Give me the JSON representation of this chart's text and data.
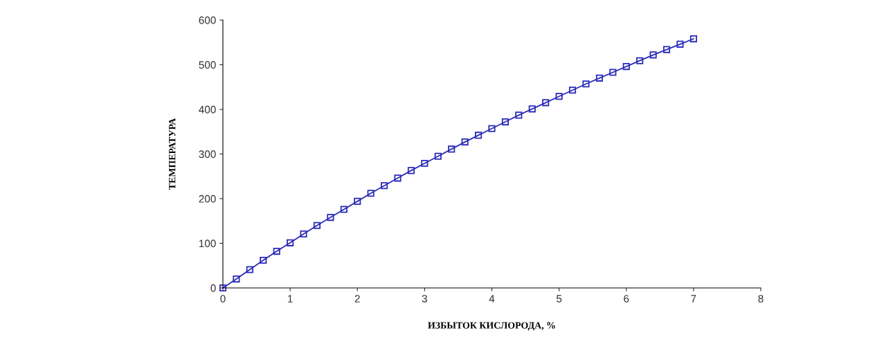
{
  "chart_data": {
    "type": "line",
    "xlabel": "ИЗБЫТОК КИСЛОРОДА, %",
    "ylabel": "ТЕМПЕРАТУРА",
    "x": [
      0,
      0.2,
      0.4,
      0.6,
      0.8,
      1.0,
      1.2,
      1.4,
      1.6,
      1.8,
      2.0,
      2.2,
      2.4,
      2.6,
      2.8,
      3.0,
      3.2,
      3.4,
      3.6,
      3.8,
      4.0,
      4.2,
      4.4,
      4.6,
      4.8,
      5.0,
      5.2,
      5.4,
      5.6,
      5.8,
      6.0,
      6.2,
      6.4,
      6.6,
      6.8,
      7.0
    ],
    "series": [
      {
        "color": "#2b2bb8",
        "values": [
          0,
          20,
          41,
          62,
          82,
          101,
          121,
          140,
          158,
          176,
          194,
          212,
          229,
          246,
          263,
          279,
          295,
          311,
          327,
          342,
          357,
          372,
          387,
          401,
          415,
          429,
          443,
          457,
          470,
          483,
          496,
          509,
          522,
          534,
          546,
          558
        ]
      }
    ],
    "xlim": [
      0,
      8
    ],
    "xticks": [
      0,
      1,
      2,
      3,
      4,
      5,
      6,
      7,
      8
    ],
    "ylim": [
      0,
      600
    ],
    "yticks": [
      0,
      100,
      200,
      300,
      400,
      500,
      600
    ],
    "grid": false,
    "legend": false,
    "marker": "square",
    "line_style": "solid"
  }
}
